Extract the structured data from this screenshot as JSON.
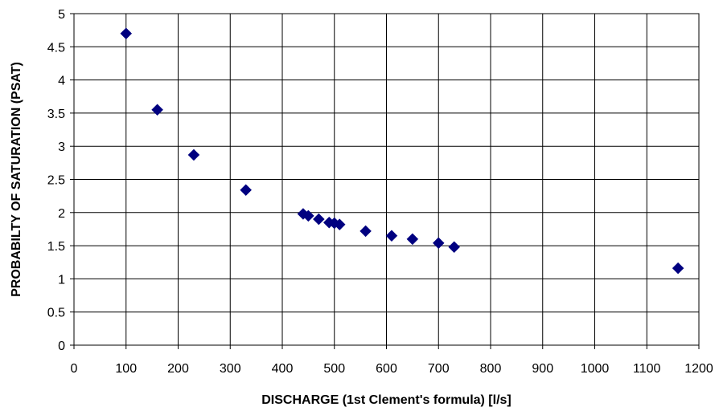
{
  "chart_data": {
    "type": "scatter",
    "xlabel": "DISCHARGE (1st Clement's formula) [l/s]",
    "ylabel": "PROBABILTY OF SATURATION (PSAT)",
    "xlim": [
      0,
      1200
    ],
    "ylim": [
      0,
      5
    ],
    "xticks": [
      "0",
      "100",
      "200",
      "300",
      "400",
      "500",
      "600",
      "700",
      "800",
      "900",
      "1000",
      "1100",
      "1200"
    ],
    "yticks": [
      "0",
      "0.5",
      "1",
      "1.5",
      "2",
      "2.5",
      "3",
      "3.5",
      "4",
      "4.5",
      "5"
    ],
    "grid": true,
    "legend": "none",
    "marker": "diamond",
    "color": "#000080",
    "series": [
      {
        "points": [
          {
            "x": 100,
            "y": 4.7
          },
          {
            "x": 160,
            "y": 3.55
          },
          {
            "x": 230,
            "y": 2.87
          },
          {
            "x": 330,
            "y": 2.34
          },
          {
            "x": 440,
            "y": 1.98
          },
          {
            "x": 450,
            "y": 1.95
          },
          {
            "x": 470,
            "y": 1.9
          },
          {
            "x": 490,
            "y": 1.85
          },
          {
            "x": 500,
            "y": 1.84
          },
          {
            "x": 510,
            "y": 1.82
          },
          {
            "x": 560,
            "y": 1.72
          },
          {
            "x": 610,
            "y": 1.65
          },
          {
            "x": 650,
            "y": 1.6
          },
          {
            "x": 700,
            "y": 1.54
          },
          {
            "x": 730,
            "y": 1.48
          },
          {
            "x": 1160,
            "y": 1.16
          }
        ]
      }
    ]
  }
}
